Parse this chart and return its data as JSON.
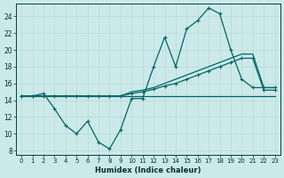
{
  "xlabel": "Humidex (Indice chaleur)",
  "background_color": "#cce9e9",
  "grid_color": "#aacccc",
  "line_color": "#006666",
  "xlim": [
    -0.5,
    23.5
  ],
  "ylim": [
    7.5,
    25.5
  ],
  "xticks": [
    0,
    1,
    2,
    3,
    4,
    5,
    6,
    7,
    8,
    9,
    10,
    11,
    12,
    13,
    14,
    15,
    16,
    17,
    18,
    19,
    20,
    21,
    22,
    23
  ],
  "yticks": [
    8,
    10,
    12,
    14,
    16,
    18,
    20,
    22,
    24
  ],
  "line1_x": [
    0,
    1,
    2,
    3,
    4,
    5,
    6,
    7,
    8,
    9,
    10,
    11,
    12,
    13,
    14,
    15,
    16,
    17,
    18,
    19,
    20,
    21,
    22,
    23
  ],
  "line1_y": [
    14.5,
    14.5,
    14.8,
    13.0,
    11.0,
    10.0,
    11.5,
    9.0,
    8.2,
    10.5,
    14.2,
    14.2,
    18.0,
    21.5,
    18.0,
    22.5,
    23.5,
    25.0,
    24.3,
    20.0,
    16.5,
    15.5,
    15.5,
    15.5
  ],
  "line2_x": [
    0,
    1,
    2,
    3,
    4,
    5,
    6,
    7,
    8,
    9,
    10,
    11,
    12,
    13,
    14,
    15,
    16,
    17,
    18,
    19,
    20,
    21,
    22,
    23
  ],
  "line2_y": [
    14.5,
    14.5,
    14.5,
    14.5,
    14.5,
    14.5,
    14.5,
    14.5,
    14.5,
    14.5,
    14.5,
    14.5,
    14.5,
    14.5,
    14.5,
    14.5,
    14.5,
    14.5,
    14.5,
    14.5,
    14.5,
    14.5,
    14.5,
    14.5
  ],
  "line3_x": [
    0,
    1,
    2,
    3,
    4,
    5,
    6,
    7,
    8,
    9,
    10,
    11,
    12,
    13,
    14,
    15,
    16,
    17,
    18,
    19,
    20,
    21,
    22,
    23
  ],
  "line3_y": [
    14.5,
    14.5,
    14.5,
    14.5,
    14.5,
    14.5,
    14.5,
    14.5,
    14.5,
    14.5,
    15.0,
    15.2,
    15.5,
    16.0,
    16.5,
    17.0,
    17.5,
    18.0,
    18.5,
    19.0,
    19.5,
    19.5,
    15.5,
    15.5
  ],
  "line4_x": [
    0,
    1,
    2,
    3,
    4,
    5,
    6,
    7,
    8,
    9,
    10,
    11,
    12,
    13,
    14,
    15,
    16,
    17,
    18,
    19,
    20,
    21,
    22,
    23
  ],
  "line4_y": [
    14.5,
    14.5,
    14.5,
    14.5,
    14.5,
    14.5,
    14.5,
    14.5,
    14.5,
    14.5,
    14.8,
    15.0,
    15.3,
    15.7,
    16.0,
    16.5,
    17.0,
    17.5,
    18.0,
    18.5,
    19.0,
    19.0,
    15.2,
    15.2
  ]
}
